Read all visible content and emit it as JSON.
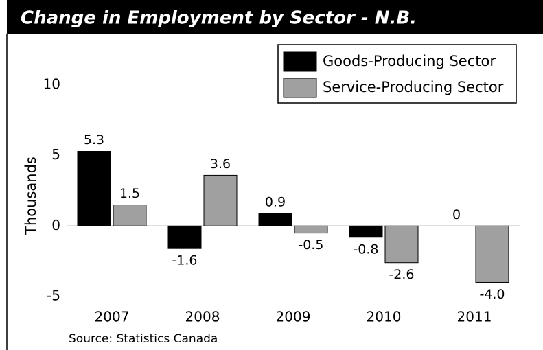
{
  "chart_data": {
    "type": "bar",
    "title": "Change in Employment by Sector - N.B.",
    "y_label": "Thousands",
    "source": "Source: Statistics Canada",
    "categories": [
      "2007",
      "2008",
      "2009",
      "2010",
      "2011"
    ],
    "series": [
      {
        "name": "Goods-Producing Sector",
        "color": "#000000",
        "values": [
          5.3,
          -1.6,
          0.9,
          -0.8,
          0
        ]
      },
      {
        "name": "Service-Producing Sector",
        "color": "#a0a0a0",
        "values": [
          1.5,
          3.6,
          -0.5,
          -2.6,
          -4.0
        ],
        "value_labels": [
          "1.5",
          "3.6",
          "-0.5",
          "-2.6",
          "-4.0"
        ]
      }
    ],
    "ylim": [
      -5,
      10
    ],
    "yticks": [
      -5,
      0,
      5,
      10
    ],
    "legend": "upper right"
  }
}
